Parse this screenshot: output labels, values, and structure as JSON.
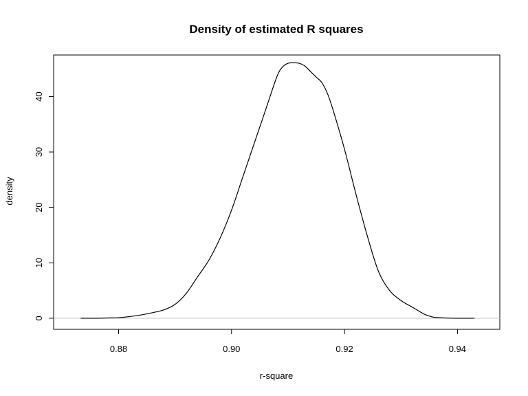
{
  "chart_data": {
    "type": "line",
    "title": "Density of estimated R squares",
    "xlabel": "r-square",
    "ylabel": "density",
    "xlim": [
      0.8685,
      0.9475
    ],
    "ylim": [
      -2,
      47.5
    ],
    "x_ticks": [
      0.88,
      0.9,
      0.92,
      0.94
    ],
    "x_tick_labels": [
      "0.88",
      "0.90",
      "0.92",
      "0.94"
    ],
    "y_ticks": [
      0,
      10,
      20,
      30,
      40
    ],
    "y_tick_labels": [
      "0",
      "10",
      "20",
      "30",
      "40"
    ],
    "baseline": 0,
    "grid": false,
    "series": [
      {
        "x": [
          0.8733,
          0.876,
          0.878,
          0.88,
          0.882,
          0.884,
          0.886,
          0.888,
          0.89,
          0.892,
          0.894,
          0.896,
          0.898,
          0.9,
          0.902,
          0.904,
          0.906,
          0.908,
          0.909,
          0.91,
          0.911,
          0.912,
          0.913,
          0.914,
          0.915,
          0.916,
          0.917,
          0.918,
          0.92,
          0.922,
          0.924,
          0.926,
          0.928,
          0.93,
          0.932,
          0.934,
          0.935,
          0.936,
          0.938,
          0.94,
          0.943
        ],
        "y": [
          0.0,
          0.0,
          0.05,
          0.1,
          0.3,
          0.6,
          1.0,
          1.5,
          2.5,
          4.5,
          7.5,
          10.5,
          14.5,
          19.5,
          25.5,
          31.5,
          37.5,
          43.5,
          45.3,
          46.0,
          46.1,
          46.0,
          45.5,
          44.5,
          43.5,
          42.5,
          40.5,
          37.5,
          30.5,
          22.5,
          15.0,
          8.5,
          5.0,
          3.2,
          2.0,
          0.8,
          0.4,
          0.15,
          0.05,
          0.0,
          0.0
        ]
      }
    ]
  }
}
